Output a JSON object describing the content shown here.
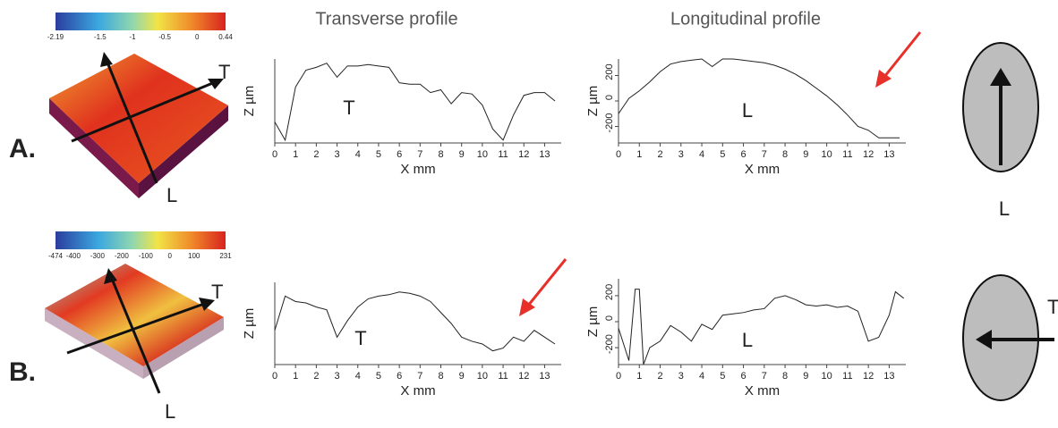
{
  "headers": [
    "Transverse profile",
    "Longitudinal profile"
  ],
  "panels": [
    {
      "label": "A.",
      "surface_axes": [
        "T",
        "L"
      ],
      "colorbar_ticks": [
        -2.19,
        -1.5,
        -1,
        -0.5,
        0,
        0.44
      ],
      "ellipse_label": "L"
    },
    {
      "label": "B.",
      "surface_axes": [
        "T",
        "L"
      ],
      "colorbar_ticks": [
        -474,
        -400,
        -300,
        -200,
        -100,
        0,
        100,
        231
      ],
      "ellipse_label": "T"
    }
  ],
  "chart_data": [
    {
      "type": "line",
      "inner_label": "T",
      "ylabel": "Z µm",
      "xlabel": "X mm",
      "x": [
        0,
        0.5,
        1,
        1.5,
        2,
        2.5,
        3,
        3.5,
        4,
        4.5,
        5,
        5.5,
        6,
        6.5,
        7,
        7.5,
        8,
        8.5,
        9,
        9.5,
        10,
        10.5,
        11,
        11.5,
        12,
        12.5,
        13,
        13.5
      ],
      "series": [
        {
          "color": "#222222",
          "values": [
            -150,
            -280,
            100,
            220,
            240,
            270,
            170,
            250,
            250,
            260,
            250,
            240,
            130,
            120,
            120,
            60,
            80,
            -20,
            60,
            50,
            -30,
            -200,
            -280,
            -100,
            40,
            60,
            60,
            0
          ]
        }
      ],
      "xlim": [
        0,
        13.8
      ],
      "xticks": [
        0,
        1,
        2,
        3,
        4,
        5,
        6,
        7,
        8,
        9,
        10,
        11,
        12,
        13
      ],
      "ylim": [
        -300,
        300
      ]
    },
    {
      "type": "line",
      "inner_label": "L",
      "ylabel": "Z µm",
      "xlabel": "X mm",
      "x": [
        0,
        0.5,
        1,
        1.5,
        2,
        2.5,
        3,
        3.5,
        4,
        4.5,
        5,
        5.5,
        6,
        6.5,
        7,
        7.5,
        8,
        8.5,
        9,
        9.5,
        10,
        10.5,
        11,
        11.5,
        12,
        12.5,
        13,
        13.5
      ],
      "series": [
        {
          "color": "#222222",
          "values": [
            -100,
            20,
            80,
            150,
            230,
            290,
            310,
            320,
            330,
            270,
            330,
            330,
            320,
            310,
            300,
            280,
            250,
            210,
            160,
            100,
            40,
            -30,
            -110,
            -200,
            -230,
            -290,
            -290,
            -290
          ]
        }
      ],
      "xlim": [
        0,
        13.8
      ],
      "xticks": [
        0,
        1,
        2,
        3,
        4,
        5,
        6,
        7,
        8,
        9,
        10,
        11,
        12,
        13
      ],
      "ylim": [
        -330,
        330
      ],
      "yticks": [
        -200,
        0,
        200
      ]
    },
    {
      "type": "line",
      "inner_label": "T",
      "ylabel": "Z µm",
      "xlabel": "X mm",
      "x": [
        0,
        0.5,
        1,
        1.5,
        2,
        2.5,
        3,
        3.5,
        4,
        4.5,
        5,
        5.5,
        6,
        6.5,
        7,
        7.5,
        8,
        8.5,
        9,
        9.5,
        10,
        10.5,
        11,
        11.5,
        12,
        12.5,
        13,
        13.5
      ],
      "series": [
        {
          "color": "#222222",
          "values": [
            -50,
            200,
            160,
            150,
            120,
            100,
            -100,
            20,
            120,
            180,
            200,
            210,
            230,
            220,
            200,
            160,
            80,
            0,
            -100,
            -130,
            -150,
            -200,
            -180,
            -100,
            -130,
            -50,
            -100,
            -150
          ]
        }
      ],
      "xlim": [
        0,
        13.8
      ],
      "xticks": [
        0,
        1,
        2,
        3,
        4,
        5,
        6,
        7,
        8,
        9,
        10,
        11,
        12,
        13
      ],
      "ylim": [
        -300,
        300
      ]
    },
    {
      "type": "line",
      "inner_label": "L",
      "ylabel": "Z µm",
      "xlabel": "X mm",
      "x": [
        0,
        0.5,
        0.8,
        1,
        1.2,
        1.5,
        2,
        2.5,
        3,
        3.5,
        4,
        4.5,
        5,
        5.5,
        6,
        6.5,
        7,
        7.5,
        8,
        8.5,
        9,
        9.5,
        10,
        10.5,
        11,
        11.5,
        12,
        12.5,
        13,
        13.3,
        13.7
      ],
      "series": [
        {
          "color": "#222222",
          "values": [
            -50,
            -300,
            250,
            250,
            -330,
            -200,
            -150,
            -30,
            -80,
            -150,
            -20,
            -60,
            50,
            60,
            70,
            90,
            100,
            180,
            200,
            170,
            130,
            120,
            130,
            110,
            120,
            80,
            -150,
            -120,
            50,
            230,
            180
          ]
        }
      ],
      "xlim": [
        0,
        13.8
      ],
      "xticks": [
        0,
        1,
        2,
        3,
        4,
        5,
        6,
        7,
        8,
        9,
        10,
        11,
        12,
        13
      ],
      "ylim": [
        -330,
        330
      ],
      "yticks": [
        -200,
        0,
        200
      ]
    }
  ]
}
